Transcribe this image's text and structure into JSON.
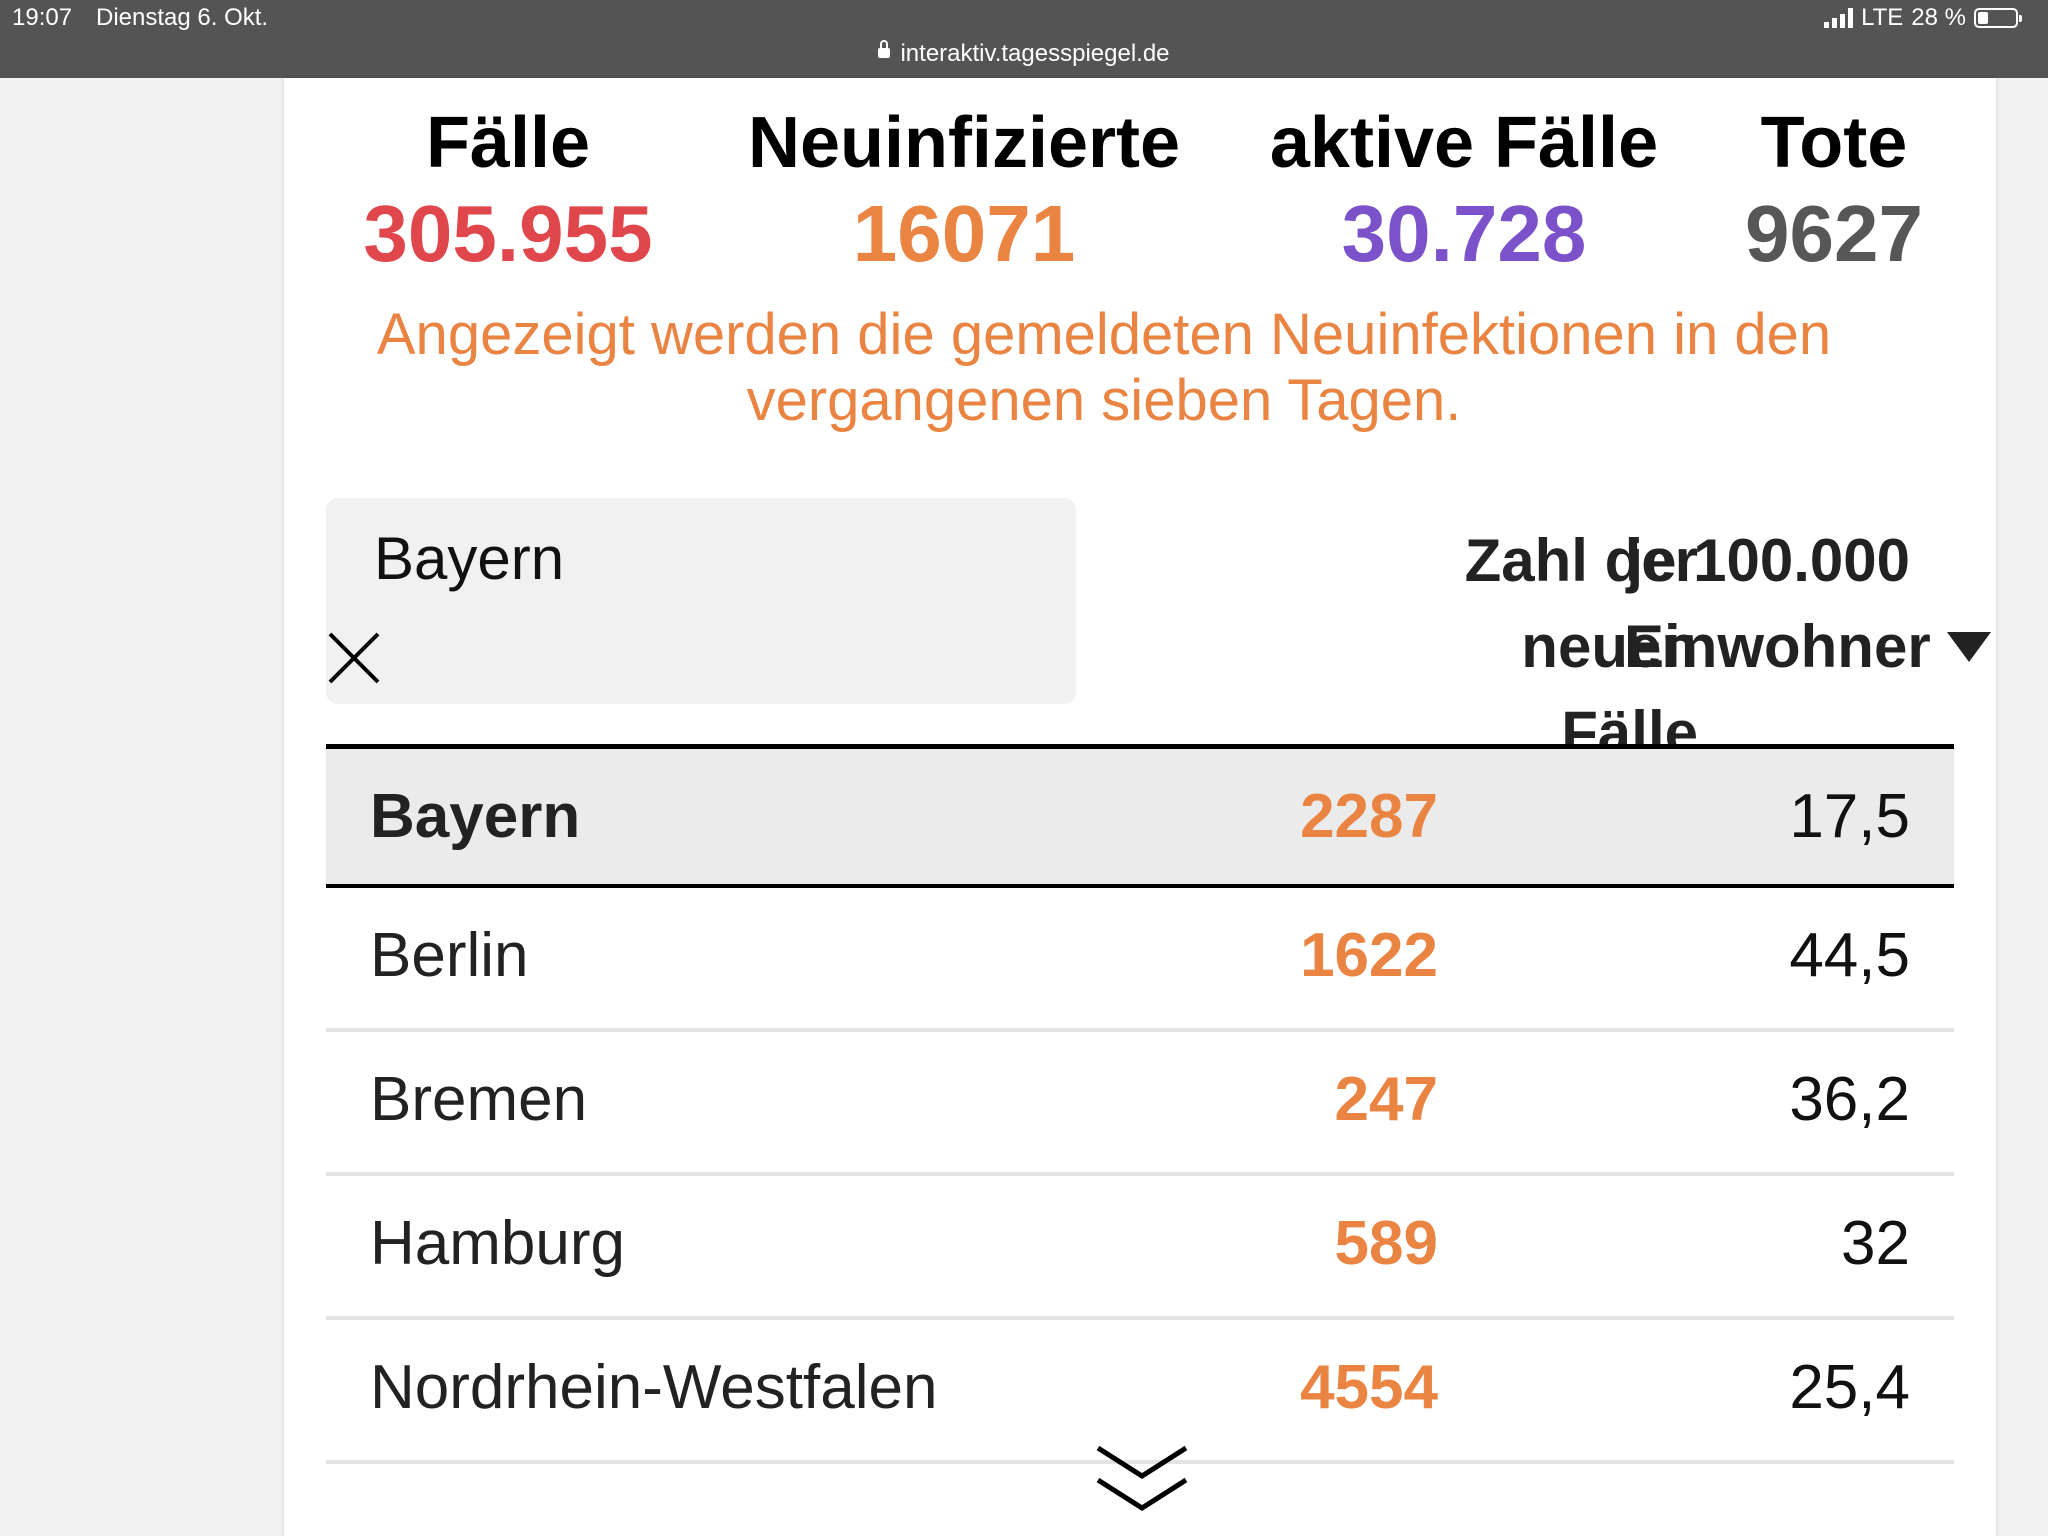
{
  "statusbar": {
    "time": "19:07",
    "date": "Dienstag 6. Okt.",
    "network": "LTE",
    "battery": "28 %",
    "url": "interaktiv.tagesspiegel.de"
  },
  "stats": [
    {
      "label": "Fälle",
      "value": "305.955",
      "color": "#e0474c"
    },
    {
      "label": "Neuinfizierte",
      "value": "16071",
      "color": "#ea8443"
    },
    {
      "label": "aktive Fälle",
      "value": "30.728",
      "color": "#7b52c9"
    },
    {
      "label": "Tote",
      "value": "9627",
      "color": "#575757"
    }
  ],
  "note": "Angezeigt werden die gemeldeten Neuinfektionen in den vergangenen sieben Tagen.",
  "search": {
    "value": "Bayern"
  },
  "table": {
    "col_new_cases": [
      "Zahl der",
      "neuen",
      "Fälle"
    ],
    "col_per_100k": [
      "je 100.000",
      "Einwohner"
    ],
    "rows": [
      {
        "name": "Bayern",
        "new": "2287",
        "rate": "17,5"
      },
      {
        "name": "Berlin",
        "new": "1622",
        "rate": "44,5"
      },
      {
        "name": "Bremen",
        "new": "247",
        "rate": "36,2"
      },
      {
        "name": "Hamburg",
        "new": "589",
        "rate": "32"
      },
      {
        "name": "Nordrhein-Westfalen",
        "new": "4554",
        "rate": "25,4"
      }
    ]
  },
  "icons": {
    "clear": "close-icon",
    "sort": "caret-down-icon",
    "more": "chevron-double-down-icon"
  }
}
